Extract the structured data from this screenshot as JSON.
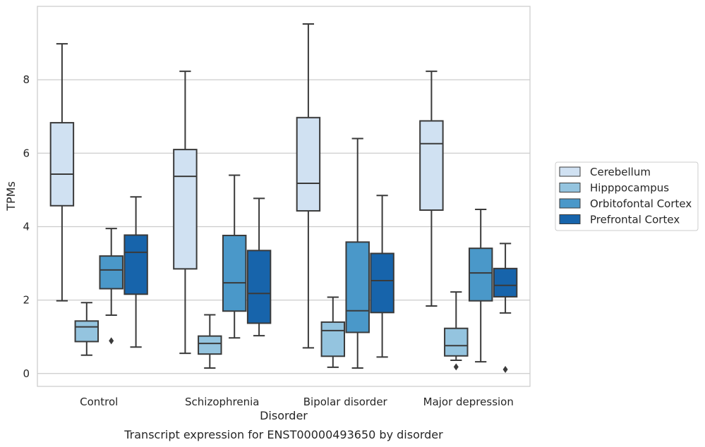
{
  "chart_data": {
    "type": "boxplot",
    "caption": "Transcript expression for ENST00000493650 by disorder",
    "xlabel": "Disorder",
    "ylabel": "TPMs",
    "ylim": [
      -0.35,
      10.0
    ],
    "yticks": [
      0,
      2,
      4,
      6,
      8
    ],
    "grid": "horizontal",
    "legend_position": "right",
    "categories": [
      "Control",
      "Schizophrenia",
      "Bipolar disorder",
      "Major depression"
    ],
    "series": [
      {
        "name": "Cerebellum",
        "color": "#d0e1f2",
        "boxes": [
          {
            "whislo": 1.98,
            "q1": 4.57,
            "med": 5.43,
            "q3": 6.83,
            "whishi": 8.98,
            "fliers": []
          },
          {
            "whislo": 0.55,
            "q1": 2.85,
            "med": 5.37,
            "q3": 6.1,
            "whishi": 8.23,
            "fliers": []
          },
          {
            "whislo": 0.7,
            "q1": 4.43,
            "med": 5.18,
            "q3": 6.97,
            "whishi": 9.52,
            "fliers": []
          },
          {
            "whislo": 1.84,
            "q1": 4.45,
            "med": 6.26,
            "q3": 6.88,
            "whishi": 8.23,
            "fliers": []
          }
        ]
      },
      {
        "name": "Hipppocampus",
        "color": "#94c4df",
        "boxes": [
          {
            "whislo": 0.5,
            "q1": 0.87,
            "med": 1.27,
            "q3": 1.43,
            "whishi": 1.93,
            "fliers": []
          },
          {
            "whislo": 0.15,
            "q1": 0.53,
            "med": 0.82,
            "q3": 1.02,
            "whishi": 1.6,
            "fliers": []
          },
          {
            "whislo": 0.17,
            "q1": 0.47,
            "med": 1.17,
            "q3": 1.4,
            "whishi": 2.08,
            "fliers": []
          },
          {
            "whislo": 0.36,
            "q1": 0.48,
            "med": 0.76,
            "q3": 1.23,
            "whishi": 2.22,
            "fliers": [
              0.18
            ]
          }
        ]
      },
      {
        "name": "Orbitofontal Cortex",
        "color": "#4a98c9",
        "boxes": [
          {
            "whislo": 1.59,
            "q1": 2.31,
            "med": 2.82,
            "q3": 3.2,
            "whishi": 3.95,
            "fliers": [
              0.89
            ]
          },
          {
            "whislo": 0.97,
            "q1": 1.7,
            "med": 2.47,
            "q3": 3.76,
            "whishi": 5.4,
            "fliers": []
          },
          {
            "whislo": 0.15,
            "q1": 1.12,
            "med": 1.71,
            "q3": 3.58,
            "whishi": 6.4,
            "fliers": []
          },
          {
            "whislo": 0.32,
            "q1": 1.98,
            "med": 2.74,
            "q3": 3.41,
            "whishi": 4.47,
            "fliers": []
          }
        ]
      },
      {
        "name": "Prefrontal Cortex",
        "color": "#1764ab",
        "boxes": [
          {
            "whislo": 0.72,
            "q1": 2.16,
            "med": 3.3,
            "q3": 3.77,
            "whishi": 4.81,
            "fliers": []
          },
          {
            "whislo": 1.03,
            "q1": 1.37,
            "med": 2.18,
            "q3": 3.35,
            "whishi": 4.77,
            "fliers": []
          },
          {
            "whislo": 0.45,
            "q1": 1.66,
            "med": 2.53,
            "q3": 3.27,
            "whishi": 4.85,
            "fliers": []
          },
          {
            "whislo": 1.65,
            "q1": 2.09,
            "med": 2.4,
            "q3": 2.86,
            "whishi": 3.54,
            "fliers": [
              0.11
            ]
          }
        ]
      }
    ]
  }
}
